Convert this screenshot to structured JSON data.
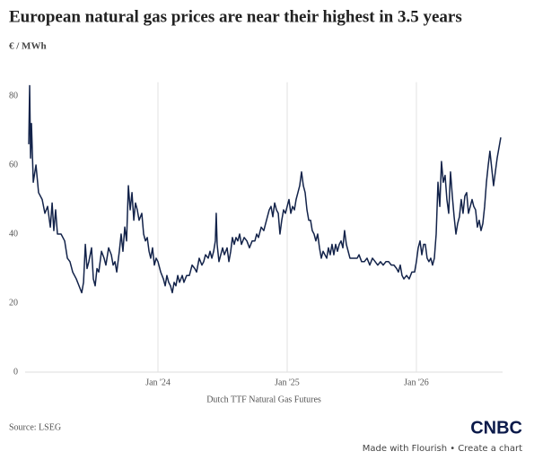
{
  "chart_data": {
    "type": "line",
    "title": "European natural gas prices are near their highest in 3.5 years",
    "y_label": "€ / MWh",
    "x_label": "Dutch TTF Natural Gas Futures",
    "source": "Source: LSEG",
    "color": "#13234a",
    "grid": true,
    "xlim": [
      2022.972,
      2026.667
    ],
    "xticks": [
      {
        "value": 2024,
        "label": "Jan '24"
      },
      {
        "value": 2025,
        "label": "Jan '25"
      },
      {
        "value": 2026,
        "label": "Jan '26"
      }
    ],
    "ylim": [
      0,
      84
    ],
    "yticks": [
      0,
      20,
      40,
      60,
      80
    ],
    "x": [
      2023.0,
      2023.007,
      2023.014,
      2023.021,
      2023.035,
      2023.056,
      2023.076,
      2023.104,
      2023.125,
      2023.146,
      2023.167,
      2023.181,
      2023.194,
      2023.208,
      2023.222,
      2023.25,
      2023.278,
      2023.299,
      2023.319,
      2023.34,
      2023.368,
      2023.389,
      2023.41,
      2023.424,
      2023.438,
      2023.451,
      2023.465,
      2023.486,
      2023.5,
      2023.514,
      2023.528,
      2023.542,
      2023.563,
      2023.583,
      2023.597,
      2023.618,
      2023.639,
      2023.653,
      2023.667,
      2023.681,
      2023.701,
      2023.715,
      2023.729,
      2023.743,
      2023.757,
      2023.771,
      2023.785,
      2023.799,
      2023.813,
      2023.826,
      2023.84,
      2023.854,
      2023.875,
      2023.889,
      2023.903,
      2023.917,
      2023.931,
      2023.944,
      2023.958,
      2023.972,
      2023.986,
      2024.0,
      2024.021,
      2024.042,
      2024.056,
      2024.069,
      2024.083,
      2024.097,
      2024.111,
      2024.125,
      2024.139,
      2024.153,
      2024.167,
      2024.188,
      2024.201,
      2024.222,
      2024.243,
      2024.264,
      2024.285,
      2024.299,
      2024.319,
      2024.34,
      2024.354,
      2024.368,
      2024.389,
      2024.403,
      2024.417,
      2024.431,
      2024.444,
      2024.451,
      2024.458,
      2024.472,
      2024.486,
      2024.5,
      2024.514,
      2024.535,
      2024.549,
      2024.563,
      2024.576,
      2024.59,
      2024.604,
      2024.618,
      2024.632,
      2024.646,
      2024.667,
      2024.688,
      2024.708,
      2024.729,
      2024.75,
      2024.764,
      2024.778,
      2024.799,
      2024.819,
      2024.84,
      2024.861,
      2024.875,
      2024.889,
      2024.903,
      2024.917,
      2024.931,
      2024.944,
      2024.958,
      2024.972,
      2024.986,
      2025.0,
      2025.014,
      2025.028,
      2025.042,
      2025.056,
      2025.069,
      2025.083,
      2025.097,
      2025.111,
      2025.125,
      2025.139,
      2025.153,
      2025.167,
      2025.181,
      2025.194,
      2025.208,
      2025.222,
      2025.236,
      2025.25,
      2025.264,
      2025.278,
      2025.292,
      2025.306,
      2025.319,
      2025.333,
      2025.347,
      2025.361,
      2025.375,
      2025.389,
      2025.403,
      2025.417,
      2025.431,
      2025.444,
      2025.458,
      2025.472,
      2025.486,
      2025.514,
      2025.542,
      2025.556,
      2025.576,
      2025.597,
      2025.618,
      2025.639,
      2025.66,
      2025.681,
      2025.701,
      2025.722,
      2025.743,
      2025.764,
      2025.785,
      2025.806,
      2025.826,
      2025.847,
      2025.861,
      2025.875,
      2025.889,
      2025.903,
      2025.924,
      2025.944,
      2025.965,
      2025.986,
      2026.0,
      2026.014,
      2026.028,
      2026.042,
      2026.056,
      2026.069,
      2026.083,
      2026.097,
      2026.111,
      2026.125,
      2026.139,
      2026.153,
      2026.167,
      2026.181,
      2026.194,
      2026.208,
      2026.222,
      2026.236,
      2026.25,
      2026.264,
      2026.278,
      2026.292,
      2026.306,
      2026.319,
      2026.333,
      2026.347,
      2026.361,
      2026.375,
      2026.389,
      2026.403,
      2026.417,
      2026.431,
      2026.444,
      2026.458,
      2026.472,
      2026.486,
      2026.5,
      2026.514,
      2026.528,
      2026.542,
      2026.556,
      2026.569,
      2026.583,
      2026.597,
      2026.611,
      2026.625,
      2026.639,
      2026.653
    ],
    "values": [
      66,
      83,
      62,
      72,
      55,
      60,
      52,
      50,
      46,
      48,
      42,
      49,
      41,
      47,
      40,
      40,
      38,
      33,
      32,
      29,
      27,
      25,
      23,
      26,
      37,
      30,
      32,
      36,
      27,
      25,
      30,
      29,
      35,
      33,
      31,
      36,
      34,
      31,
      32,
      29,
      35,
      40,
      35,
      42,
      38,
      54,
      47,
      52,
      44,
      49,
      47,
      44,
      46,
      40,
      38,
      39,
      35,
      33,
      36,
      31,
      33,
      32,
      29,
      27,
      25,
      28,
      26,
      25,
      23,
      26,
      25,
      28,
      26,
      28,
      26,
      28,
      28,
      31,
      30,
      29,
      33,
      31,
      32,
      34,
      33,
      35,
      33,
      35,
      38,
      46,
      37,
      32,
      34,
      36,
      34,
      36,
      32,
      35,
      39,
      37,
      39,
      38,
      40,
      37,
      39,
      38,
      36,
      38,
      38,
      40,
      39,
      42,
      41,
      44,
      47,
      48,
      45,
      49,
      47,
      46,
      40,
      44,
      47,
      46,
      48,
      50,
      46,
      48,
      47,
      50,
      52,
      54,
      58,
      54,
      52,
      47,
      44,
      44,
      41,
      40,
      38,
      40,
      36,
      33,
      35,
      34,
      33,
      36,
      34,
      37,
      34,
      37,
      35,
      37,
      38,
      36,
      41,
      37,
      35,
      33,
      33,
      33,
      34,
      32,
      32,
      33,
      31,
      33,
      32,
      31,
      32,
      31,
      32,
      32,
      31,
      31,
      30,
      29,
      31,
      28,
      27,
      28,
      27,
      29,
      29,
      32,
      36,
      38,
      34,
      37,
      37,
      33,
      32,
      33,
      31,
      33,
      40,
      55,
      48,
      61,
      55,
      57,
      50,
      46,
      58,
      51,
      45,
      40,
      43,
      45,
      50,
      46,
      51,
      52,
      46,
      48,
      50,
      48,
      47,
      42,
      44,
      41,
      43,
      48,
      55,
      60,
      64,
      59,
      54,
      58,
      62,
      65,
      68
    ]
  },
  "branding": {
    "logo": "CNBC",
    "footer": "Made with Flourish • Create a chart"
  }
}
